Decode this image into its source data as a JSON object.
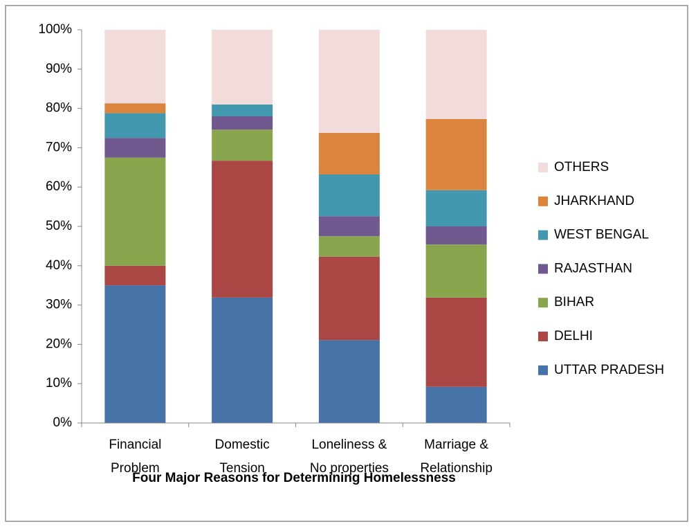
{
  "chart_data": {
    "type": "stacked_bar_100",
    "x_label": "Four Major Reasons for Determining  Homelessness",
    "categories": [
      "Financial\nProblem",
      "Domestic\nTension",
      "Loneliness &\nNo properties",
      "Marriage &\nRelationship"
    ],
    "series": [
      {
        "name": "UTTAR PRADESH",
        "color": "#4572a7",
        "values": [
          35,
          31.9,
          21.1,
          9.2
        ]
      },
      {
        "name": "DELHI",
        "color": "#aa4643",
        "values": [
          5,
          34.8,
          21.2,
          22.7
        ]
      },
      {
        "name": "BIHAR",
        "color": "#89a54e",
        "values": [
          27.5,
          7.9,
          5.2,
          13.5
        ]
      },
      {
        "name": "RAJASTHAN",
        "color": "#71588f",
        "values": [
          5,
          3.4,
          5.1,
          4.6
        ]
      },
      {
        "name": "WEST BENGAL",
        "color": "#4198af",
        "values": [
          6.3,
          3,
          10.6,
          9.2
        ]
      },
      {
        "name": "JHARKHAND",
        "color": "#db843d",
        "values": [
          2.5,
          0,
          10.6,
          18.1
        ]
      },
      {
        "name": "OTHERS",
        "color": "#f2dcdb",
        "values": [
          18.7,
          19,
          26.2,
          22.7
        ]
      }
    ],
    "ylim": [
      0,
      100
    ],
    "yticks": [
      {
        "value": 0,
        "label": "0%"
      },
      {
        "value": 10,
        "label": "10%"
      },
      {
        "value": 20,
        "label": "20%"
      },
      {
        "value": 30,
        "label": "30%"
      },
      {
        "value": 40,
        "label": "40%"
      },
      {
        "value": 50,
        "label": "50%"
      },
      {
        "value": 60,
        "label": "60%"
      },
      {
        "value": 70,
        "label": "70%"
      },
      {
        "value": 80,
        "label": "80%"
      },
      {
        "value": 90,
        "label": "90%"
      },
      {
        "value": 100,
        "label": "100%"
      }
    ],
    "grid": false,
    "legend": "right"
  }
}
